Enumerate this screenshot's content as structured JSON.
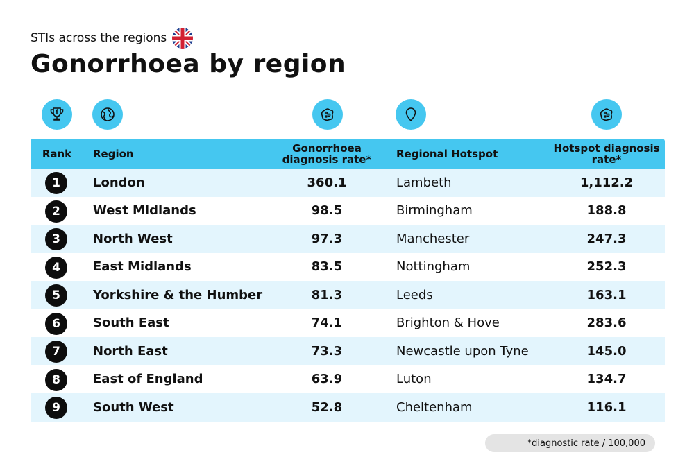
{
  "header": {
    "subtitle": "STIs across the regions",
    "title": "Gonorrhoea by region"
  },
  "icons": {
    "rank": "trophy-icon",
    "region": "globe-icon",
    "rate": "virus-icon",
    "hotspot": "map-pin-icon",
    "hotspot_rate": "virus-icon",
    "flag": "uk-flag-icon"
  },
  "colors": {
    "accent": "#45c7f0",
    "row_alt": "#e3f5fd",
    "badge": "#0d0d0d"
  },
  "footnote": "*diagnostic rate / 100,000",
  "chart_data": {
    "type": "table",
    "title": "Gonorrhoea by region",
    "columns": [
      "Rank",
      "Region",
      "Gonorrhoea diagnosis rate*",
      "Regional Hotspot",
      "Hotspot diagnosis rate*"
    ],
    "rows": [
      {
        "rank": "1",
        "region": "London",
        "rate": "360.1",
        "hotspot": "Lambeth",
        "hotspot_rate": "1,112.2"
      },
      {
        "rank": "2",
        "region": "West Midlands",
        "rate": "98.5",
        "hotspot": "Birmingham",
        "hotspot_rate": "188.8"
      },
      {
        "rank": "3",
        "region": "North West",
        "rate": "97.3",
        "hotspot": "Manchester",
        "hotspot_rate": "247.3"
      },
      {
        "rank": "4",
        "region": "East Midlands",
        "rate": "83.5",
        "hotspot": "Nottingham",
        "hotspot_rate": "252.3"
      },
      {
        "rank": "5",
        "region": "Yorkshire & the Humber",
        "rate": "81.3",
        "hotspot": "Leeds",
        "hotspot_rate": "163.1"
      },
      {
        "rank": "6",
        "region": "South East",
        "rate": "74.1",
        "hotspot": "Brighton & Hove",
        "hotspot_rate": "283.6"
      },
      {
        "rank": "7",
        "region": "North East",
        "rate": "73.3",
        "hotspot": "Newcastle upon Tyne",
        "hotspot_rate": "145.0"
      },
      {
        "rank": "8",
        "region": "East of England",
        "rate": "63.9",
        "hotspot": "Luton",
        "hotspot_rate": "134.7"
      },
      {
        "rank": "9",
        "region": "South West",
        "rate": "52.8",
        "hotspot": "Cheltenham",
        "hotspot_rate": "116.1"
      }
    ]
  }
}
